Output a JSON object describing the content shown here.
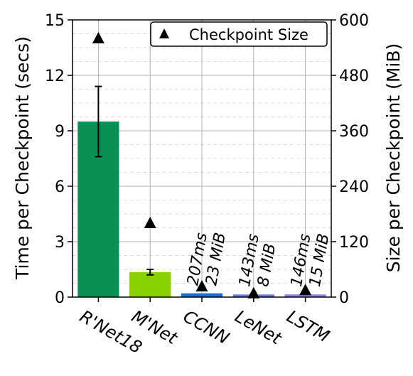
{
  "chart_data": {
    "type": "bar",
    "categories": [
      "R'Net18",
      "M'Net",
      "CCNN",
      "LeNet",
      "LSTM"
    ],
    "series": [
      {
        "values": [
          9.5,
          1.35,
          0.207,
          0.143,
          0.146
        ],
        "error": [
          1.9,
          0.15,
          0,
          0,
          0
        ],
        "colors": [
          "#0a8f55",
          "#88d000",
          "#1a6fd6",
          "#6f79e0",
          "#8f84e6"
        ]
      },
      {
        "name": "Checkpoint Size",
        "marker": "triangle",
        "axis": "right",
        "values": [
          560,
          160,
          23,
          8,
          15
        ]
      }
    ],
    "bar_annotations": [
      null,
      null,
      [
        "207ms",
        "23 MiB"
      ],
      [
        "143ms",
        "8 MiB"
      ],
      [
        "146ms",
        "15 MiB"
      ]
    ],
    "ylabel": "Time per Checkpoint (secs)",
    "ylabel_right": "Size per Checkpoint (MiB)",
    "ylim": [
      0,
      15
    ],
    "ylim_right": [
      0,
      600
    ],
    "yticks": [
      "0",
      "3",
      "6",
      "9",
      "12",
      "15"
    ],
    "yticks_right": [
      "0",
      "120",
      "240",
      "360",
      "480",
      "600"
    ],
    "grid": true,
    "legend_position": "top-right"
  }
}
